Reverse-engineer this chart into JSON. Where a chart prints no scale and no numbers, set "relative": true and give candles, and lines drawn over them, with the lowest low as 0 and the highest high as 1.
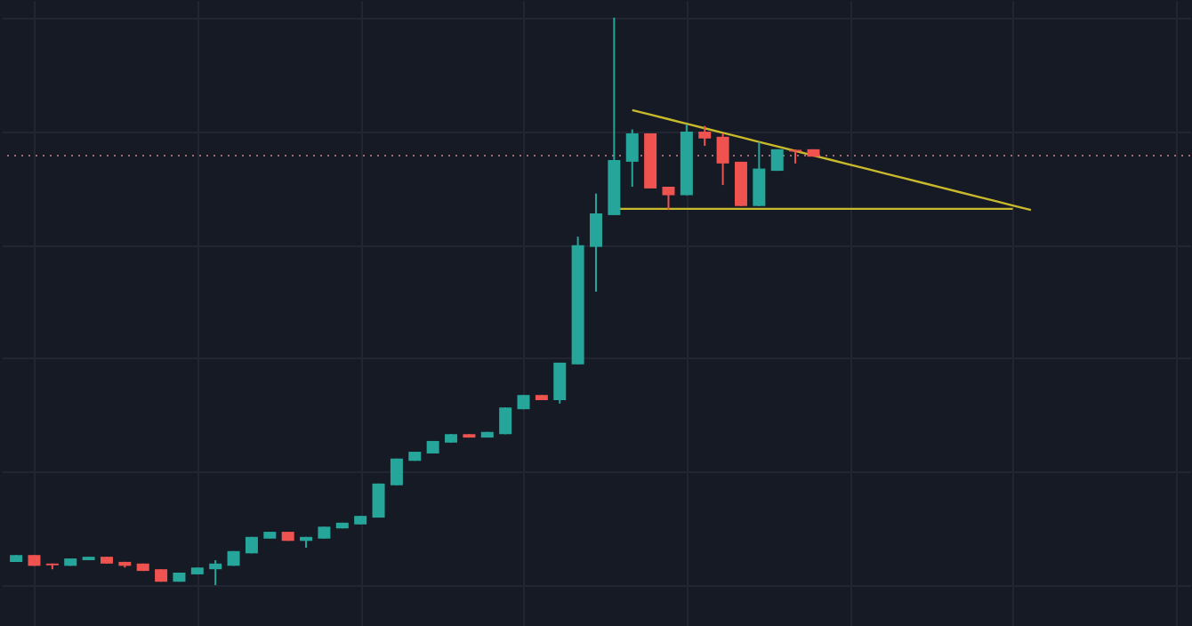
{
  "chart_data": {
    "type": "candlestick",
    "relative": true,
    "grid": true,
    "tick_labels": false,
    "categories": [
      null,
      null,
      null,
      null,
      null,
      null,
      null,
      null,
      null,
      null,
      null,
      null,
      null,
      null,
      null,
      null,
      null,
      null,
      null,
      null,
      null,
      null,
      null,
      null,
      null,
      null,
      null,
      null,
      null,
      null,
      null,
      null,
      null,
      null,
      null,
      null,
      null,
      null,
      null,
      null,
      null,
      null,
      null,
      null,
      null,
      null,
      null,
      null,
      null,
      null,
      null,
      null,
      null,
      null,
      null,
      null,
      null,
      null,
      null,
      null,
      null,
      null,
      null,
      null,
      null
    ],
    "ohlc": [
      [
        0.041,
        0.053,
        0.041,
        0.053
      ],
      [
        0.053,
        0.053,
        0.034,
        0.034
      ],
      [
        0.038,
        0.038,
        0.028,
        0.035
      ],
      [
        0.034,
        0.047,
        0.034,
        0.047
      ],
      [
        0.044,
        0.05,
        0.044,
        0.05
      ],
      [
        0.05,
        0.05,
        0.038,
        0.038
      ],
      [
        0.041,
        0.041,
        0.031,
        0.034
      ],
      [
        0.038,
        0.038,
        0.025,
        0.025
      ],
      [
        0.028,
        0.028,
        0.006,
        0.006
      ],
      [
        0.006,
        0.022,
        0.006,
        0.022
      ],
      [
        0.019,
        0.031,
        0.019,
        0.031
      ],
      [
        0.028,
        0.044,
        0.0,
        0.038
      ],
      [
        0.034,
        0.06,
        0.034,
        0.06
      ],
      [
        0.056,
        0.085,
        0.056,
        0.085
      ],
      [
        0.082,
        0.094,
        0.082,
        0.094
      ],
      [
        0.094,
        0.094,
        0.078,
        0.078
      ],
      [
        0.078,
        0.085,
        0.066,
        0.085
      ],
      [
        0.082,
        0.103,
        0.082,
        0.103
      ],
      [
        0.1,
        0.11,
        0.1,
        0.11
      ],
      [
        0.107,
        0.122,
        0.107,
        0.122
      ],
      [
        0.119,
        0.179,
        0.119,
        0.179
      ],
      [
        0.176,
        0.223,
        0.176,
        0.223
      ],
      [
        0.219,
        0.235,
        0.219,
        0.235
      ],
      [
        0.232,
        0.254,
        0.232,
        0.254
      ],
      [
        0.251,
        0.266,
        0.251,
        0.266
      ],
      [
        0.266,
        0.266,
        0.26,
        0.26
      ],
      [
        0.26,
        0.27,
        0.26,
        0.27
      ],
      [
        0.266,
        0.313,
        0.266,
        0.313
      ],
      [
        0.31,
        0.335,
        0.31,
        0.335
      ],
      [
        0.335,
        0.335,
        0.326,
        0.326
      ],
      [
        0.326,
        0.392,
        0.32,
        0.392
      ],
      [
        0.389,
        0.614,
        0.389,
        0.599
      ],
      [
        0.596,
        0.69,
        0.517,
        0.655
      ],
      [
        0.652,
        1.0,
        0.652,
        0.749
      ],
      [
        0.746,
        0.803,
        0.702,
        0.796
      ],
      [
        0.796,
        0.796,
        0.699,
        0.699
      ],
      [
        0.702,
        0.702,
        0.661,
        0.687
      ],
      [
        0.687,
        0.812,
        0.687,
        0.799
      ],
      [
        0.799,
        0.809,
        0.774,
        0.787
      ],
      [
        0.79,
        0.796,
        0.705,
        0.743
      ],
      [
        0.746,
        0.746,
        0.668,
        0.668
      ],
      [
        0.668,
        0.781,
        0.668,
        0.734
      ],
      [
        0.73,
        0.768,
        0.73,
        0.768
      ],
      [
        0.767,
        0.767,
        0.743,
        0.764
      ],
      [
        0.768,
        0.768,
        0.755,
        0.755
      ],
      null,
      null,
      null,
      null,
      null,
      null,
      null,
      null,
      null,
      null,
      null,
      null,
      null,
      null,
      null,
      null,
      null,
      null,
      null,
      null
    ],
    "colors": [
      "#26a69a",
      "#ef5350",
      "#ef5350",
      "#26a69a",
      "#26a69a",
      "#ef5350",
      "#ef5350",
      "#ef5350",
      "#ef5350",
      "#26a69a",
      "#26a69a",
      "#26a69a",
      "#26a69a",
      "#26a69a",
      "#26a69a",
      "#ef5350",
      "#26a69a",
      "#26a69a",
      "#26a69a",
      "#26a69a",
      "#26a69a",
      "#26a69a",
      "#26a69a",
      "#26a69a",
      "#26a69a",
      "#ef5350",
      "#26a69a",
      "#26a69a",
      "#26a69a",
      "#ef5350",
      "#26a69a",
      "#26a69a",
      "#26a69a",
      "#26a69a",
      "#26a69a",
      "#ef5350",
      "#ef5350",
      "#26a69a",
      "#ef5350",
      "#ef5350",
      "#ef5350",
      "#26a69a",
      "#26a69a",
      "#ef5350",
      "#ef5350",
      null,
      null,
      null,
      null,
      null,
      null,
      null,
      null,
      null,
      null,
      null,
      null,
      null,
      null,
      null,
      null,
      null,
      null,
      null,
      null
    ],
    "series": [
      {
        "type": "line",
        "color": "#c9b92c",
        "values": [
          null,
          null,
          null,
          null,
          null,
          null,
          null,
          null,
          null,
          null,
          null,
          null,
          null,
          null,
          null,
          null,
          null,
          null,
          null,
          null,
          null,
          null,
          null,
          null,
          null,
          null,
          null,
          null,
          null,
          null,
          null,
          null,
          null,
          null,
          0.837,
          0.829,
          0.821,
          0.813,
          0.805,
          0.797,
          0.789,
          0.781,
          0.773,
          0.765,
          0.757,
          0.749,
          0.741,
          0.733,
          0.725,
          0.717,
          0.709,
          0.701,
          0.693,
          0.685,
          0.677,
          0.669,
          0.661,
          null,
          null,
          null,
          null,
          null,
          null,
          null,
          null
        ]
      },
      {
        "type": "line",
        "color": "#c9b92c",
        "values": [
          null,
          null,
          null,
          null,
          null,
          null,
          null,
          null,
          null,
          null,
          null,
          null,
          null,
          null,
          null,
          null,
          null,
          null,
          null,
          null,
          null,
          null,
          null,
          null,
          null,
          null,
          null,
          null,
          null,
          null,
          null,
          null,
          null,
          0.663,
          0.663,
          0.663,
          0.663,
          0.663,
          0.663,
          0.663,
          0.663,
          0.663,
          0.663,
          0.663,
          0.663,
          0.663,
          0.663,
          0.663,
          0.663,
          0.663,
          0.663,
          0.663,
          0.663,
          0.663,
          0.663,
          0.663,
          null,
          null,
          null,
          null,
          null,
          null,
          null,
          null,
          null
        ]
      }
    ],
    "ref_lines": [
      {
        "axis": "y",
        "value": 0.757,
        "color": "#9e6b73",
        "line_style": "dotted"
      }
    ]
  }
}
